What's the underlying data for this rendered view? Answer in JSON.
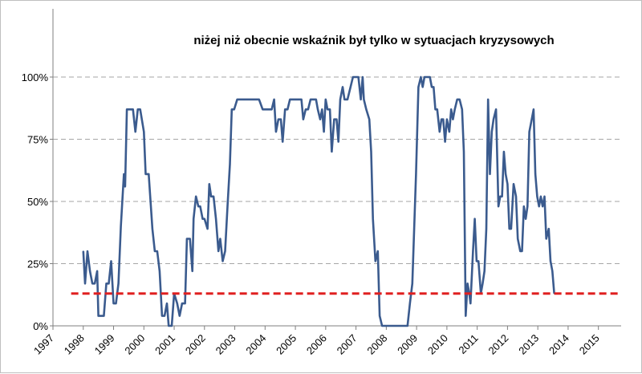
{
  "chart_data": {
    "type": "line",
    "title": "niżej niż obecnie wskaźnik był tylko w sytuacjach kryzysowych",
    "xlabel": "",
    "ylabel": "",
    "xlim": [
      1997.0,
      2015.75
    ],
    "ylim": [
      0,
      100
    ],
    "x_ticks": [
      "1997",
      "1998",
      "1999",
      "2000",
      "2001",
      "2002",
      "2003",
      "2004",
      "2005",
      "2006",
      "2007",
      "2008",
      "2009",
      "2010",
      "2011",
      "2012",
      "2013",
      "2014",
      "2015"
    ],
    "y_ticks": [
      {
        "value": 0,
        "label": "0%"
      },
      {
        "value": 25,
        "label": "25%"
      },
      {
        "value": 50,
        "label": "50%"
      },
      {
        "value": 75,
        "label": "75%"
      },
      {
        "value": 100,
        "label": "100%"
      }
    ],
    "grid": "horizontal dashed",
    "legend": "none",
    "threshold": {
      "value": 13,
      "color": "#e02020",
      "style": "dashed"
    },
    "series": [
      {
        "color": "#3b5b8e",
        "points": [
          [
            1998.0,
            30
          ],
          [
            1998.06,
            17
          ],
          [
            1998.14,
            30
          ],
          [
            1998.22,
            22
          ],
          [
            1998.3,
            17
          ],
          [
            1998.38,
            17
          ],
          [
            1998.46,
            22
          ],
          [
            1998.5,
            4
          ],
          [
            1998.58,
            4
          ],
          [
            1998.68,
            4
          ],
          [
            1998.76,
            17
          ],
          [
            1998.84,
            17
          ],
          [
            1998.92,
            26
          ],
          [
            1999.0,
            9
          ],
          [
            1999.08,
            9
          ],
          [
            1999.16,
            17
          ],
          [
            1999.24,
            40
          ],
          [
            1999.34,
            61
          ],
          [
            1999.38,
            56
          ],
          [
            1999.44,
            87
          ],
          [
            1999.56,
            87
          ],
          [
            1999.64,
            87
          ],
          [
            1999.72,
            78
          ],
          [
            1999.8,
            87
          ],
          [
            1999.88,
            87
          ],
          [
            2000.0,
            78
          ],
          [
            2000.06,
            61
          ],
          [
            2000.16,
            61
          ],
          [
            2000.28,
            39
          ],
          [
            2000.36,
            30
          ],
          [
            2000.44,
            30
          ],
          [
            2000.52,
            22
          ],
          [
            2000.6,
            4
          ],
          [
            2000.68,
            4
          ],
          [
            2000.76,
            9
          ],
          [
            2000.82,
            0
          ],
          [
            2000.92,
            0
          ],
          [
            2001.0,
            13
          ],
          [
            2001.1,
            9
          ],
          [
            2001.18,
            4
          ],
          [
            2001.26,
            9
          ],
          [
            2001.36,
            9
          ],
          [
            2001.42,
            35
          ],
          [
            2001.52,
            35
          ],
          [
            2001.6,
            22
          ],
          [
            2001.64,
            43
          ],
          [
            2001.72,
            52
          ],
          [
            2001.8,
            48
          ],
          [
            2001.86,
            48
          ],
          [
            2001.94,
            43
          ],
          [
            2002.0,
            43
          ],
          [
            2002.1,
            39
          ],
          [
            2002.16,
            57
          ],
          [
            2002.22,
            52
          ],
          [
            2002.3,
            52
          ],
          [
            2002.38,
            43
          ],
          [
            2002.46,
            30
          ],
          [
            2002.52,
            35
          ],
          [
            2002.6,
            26
          ],
          [
            2002.68,
            30
          ],
          [
            2002.76,
            48
          ],
          [
            2002.84,
            65
          ],
          [
            2002.9,
            87
          ],
          [
            2002.98,
            87
          ],
          [
            2003.08,
            91
          ],
          [
            2003.3,
            91
          ],
          [
            2003.6,
            91
          ],
          [
            2003.8,
            91
          ],
          [
            2003.92,
            87
          ],
          [
            2004.1,
            87
          ],
          [
            2004.22,
            87
          ],
          [
            2004.3,
            91
          ],
          [
            2004.36,
            78
          ],
          [
            2004.44,
            83
          ],
          [
            2004.52,
            83
          ],
          [
            2004.58,
            74
          ],
          [
            2004.66,
            87
          ],
          [
            2004.74,
            87
          ],
          [
            2004.82,
            91
          ],
          [
            2004.92,
            91
          ],
          [
            2005.0,
            91
          ],
          [
            2005.06,
            91
          ],
          [
            2005.14,
            91
          ],
          [
            2005.2,
            91
          ],
          [
            2005.26,
            83
          ],
          [
            2005.34,
            87
          ],
          [
            2005.42,
            87
          ],
          [
            2005.5,
            91
          ],
          [
            2005.58,
            91
          ],
          [
            2005.68,
            91
          ],
          [
            2005.74,
            87
          ],
          [
            2005.82,
            83
          ],
          [
            2005.88,
            87
          ],
          [
            2005.94,
            78
          ],
          [
            2006.0,
            91
          ],
          [
            2006.06,
            87
          ],
          [
            2006.14,
            87
          ],
          [
            2006.2,
            70
          ],
          [
            2006.28,
            83
          ],
          [
            2006.36,
            83
          ],
          [
            2006.42,
            74
          ],
          [
            2006.48,
            91
          ],
          [
            2006.56,
            96
          ],
          [
            2006.62,
            91
          ],
          [
            2006.72,
            91
          ],
          [
            2006.82,
            96
          ],
          [
            2006.9,
            100
          ],
          [
            2007.0,
            100
          ],
          [
            2007.08,
            100
          ],
          [
            2007.16,
            91
          ],
          [
            2007.22,
            100
          ],
          [
            2007.26,
            91
          ],
          [
            2007.34,
            87
          ],
          [
            2007.44,
            83
          ],
          [
            2007.5,
            70
          ],
          [
            2007.56,
            43
          ],
          [
            2007.64,
            26
          ],
          [
            2007.72,
            30
          ],
          [
            2007.78,
            4
          ],
          [
            2007.86,
            0
          ],
          [
            2007.96,
            0
          ],
          [
            2008.2,
            0
          ],
          [
            2008.4,
            0
          ],
          [
            2008.6,
            0
          ],
          [
            2008.7,
            0
          ],
          [
            2008.78,
            9
          ],
          [
            2008.86,
            17
          ],
          [
            2008.92,
            39
          ],
          [
            2008.98,
            61
          ],
          [
            2009.06,
            96
          ],
          [
            2009.14,
            100
          ],
          [
            2009.2,
            96
          ],
          [
            2009.26,
            100
          ],
          [
            2009.36,
            100
          ],
          [
            2009.44,
            100
          ],
          [
            2009.5,
            96
          ],
          [
            2009.56,
            96
          ],
          [
            2009.62,
            87
          ],
          [
            2009.68,
            87
          ],
          [
            2009.76,
            78
          ],
          [
            2009.82,
            83
          ],
          [
            2009.88,
            83
          ],
          [
            2009.94,
            74
          ],
          [
            2010.0,
            83
          ],
          [
            2010.08,
            78
          ],
          [
            2010.14,
            87
          ],
          [
            2010.2,
            83
          ],
          [
            2010.26,
            87
          ],
          [
            2010.34,
            91
          ],
          [
            2010.42,
            91
          ],
          [
            2010.5,
            87
          ],
          [
            2010.56,
            70
          ],
          [
            2010.62,
            4
          ],
          [
            2010.68,
            17
          ],
          [
            2010.74,
            13
          ],
          [
            2010.78,
            9
          ],
          [
            2010.86,
            30
          ],
          [
            2010.92,
            43
          ],
          [
            2010.98,
            26
          ],
          [
            2011.04,
            26
          ],
          [
            2011.12,
            13
          ],
          [
            2011.18,
            17
          ],
          [
            2011.24,
            22
          ],
          [
            2011.3,
            39
          ],
          [
            2011.36,
            91
          ],
          [
            2011.42,
            61
          ],
          [
            2011.48,
            78
          ],
          [
            2011.54,
            83
          ],
          [
            2011.62,
            87
          ],
          [
            2011.7,
            48
          ],
          [
            2011.76,
            52
          ],
          [
            2011.82,
            52
          ],
          [
            2011.88,
            70
          ],
          [
            2011.94,
            61
          ],
          [
            2012.0,
            57
          ],
          [
            2012.06,
            39
          ],
          [
            2012.12,
            39
          ],
          [
            2012.2,
            57
          ],
          [
            2012.28,
            52
          ],
          [
            2012.34,
            35
          ],
          [
            2012.42,
            30
          ],
          [
            2012.48,
            30
          ],
          [
            2012.54,
            48
          ],
          [
            2012.6,
            43
          ],
          [
            2012.66,
            48
          ],
          [
            2012.72,
            78
          ],
          [
            2012.8,
            83
          ],
          [
            2012.86,
            87
          ],
          [
            2012.92,
            61
          ],
          [
            2012.98,
            52
          ],
          [
            2013.04,
            48
          ],
          [
            2013.1,
            52
          ],
          [
            2013.16,
            48
          ],
          [
            2013.22,
            52
          ],
          [
            2013.28,
            35
          ],
          [
            2013.36,
            39
          ],
          [
            2013.42,
            26
          ],
          [
            2013.48,
            22
          ],
          [
            2013.54,
            13
          ]
        ]
      }
    ]
  }
}
